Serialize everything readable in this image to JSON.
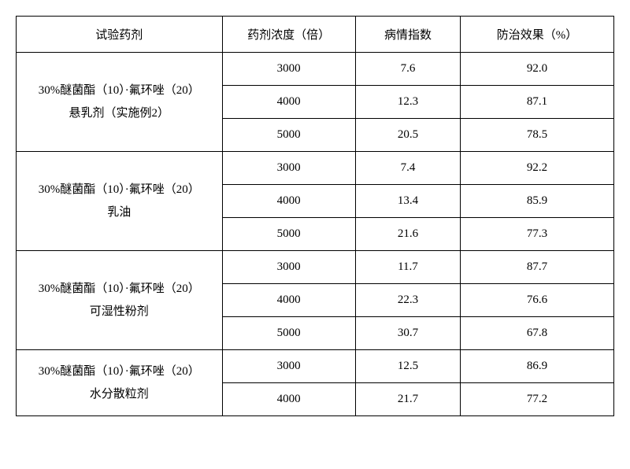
{
  "header": {
    "agent": "试验药剂",
    "concentration": "药剂浓度（倍）",
    "index": "病情指数",
    "efficacy": "防治效果（%）"
  },
  "groups": [
    {
      "agent_line1": "30%醚菌酯（10）·氟环唑（20）",
      "agent_line2": "悬乳剂（实施例2）",
      "rows": [
        {
          "conc": "3000",
          "idx": "7.6",
          "eff": "92.0"
        },
        {
          "conc": "4000",
          "idx": "12.3",
          "eff": "87.1"
        },
        {
          "conc": "5000",
          "idx": "20.5",
          "eff": "78.5"
        }
      ]
    },
    {
      "agent_line1": "30%醚菌酯（10）·氟环唑（20）",
      "agent_line2": "乳油",
      "rows": [
        {
          "conc": "3000",
          "idx": "7.4",
          "eff": "92.2"
        },
        {
          "conc": "4000",
          "idx": "13.4",
          "eff": "85.9"
        },
        {
          "conc": "5000",
          "idx": "21.6",
          "eff": "77.3"
        }
      ]
    },
    {
      "agent_line1": "30%醚菌酯（10）·氟环唑（20）",
      "agent_line2": "可湿性粉剂",
      "rows": [
        {
          "conc": "3000",
          "idx": "11.7",
          "eff": "87.7"
        },
        {
          "conc": "4000",
          "idx": "22.3",
          "eff": "76.6"
        },
        {
          "conc": "5000",
          "idx": "30.7",
          "eff": "67.8"
        }
      ]
    },
    {
      "agent_line1": "30%醚菌酯（10）·氟环唑（20）",
      "agent_line2": "水分散粒剂",
      "rows": [
        {
          "conc": "3000",
          "idx": "12.5",
          "eff": "86.9"
        },
        {
          "conc": "4000",
          "idx": "21.7",
          "eff": "77.2"
        }
      ]
    }
  ]
}
